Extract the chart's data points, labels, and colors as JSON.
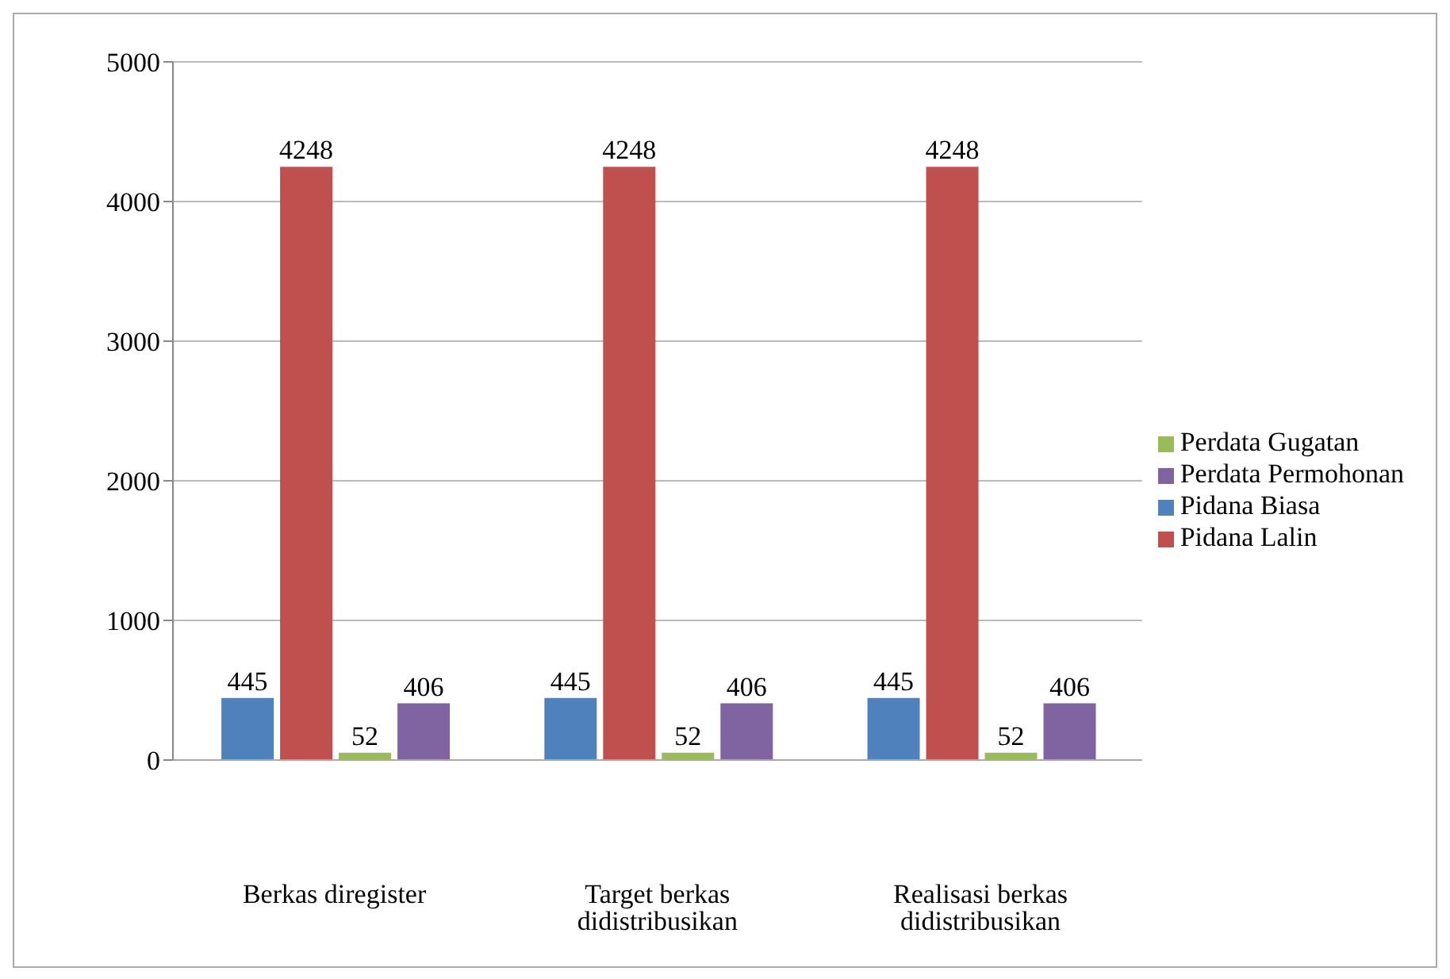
{
  "chart_data": {
    "type": "bar",
    "categories": [
      "Berkas diregister",
      "Target berkas didistribusikan",
      "Realisasi berkas didistribusikan"
    ],
    "series": [
      {
        "name": "Pidana Biasa",
        "color": "#4f81bd",
        "values": [
          445,
          445,
          445
        ]
      },
      {
        "name": "Pidana Lalin",
        "color": "#c0504d",
        "values": [
          4248,
          4248,
          4248
        ]
      },
      {
        "name": "Perdata Gugatan",
        "color": "#9bbb59",
        "values": [
          52,
          52,
          52
        ]
      },
      {
        "name": "Perdata Permohonan",
        "color": "#8064a2",
        "values": [
          406,
          406,
          406
        ]
      }
    ],
    "ylim": [
      0,
      5000
    ],
    "yticks": [
      0,
      1000,
      2000,
      3000,
      4000,
      5000
    ],
    "grid": "y",
    "legend": "right",
    "data_labels": true
  }
}
